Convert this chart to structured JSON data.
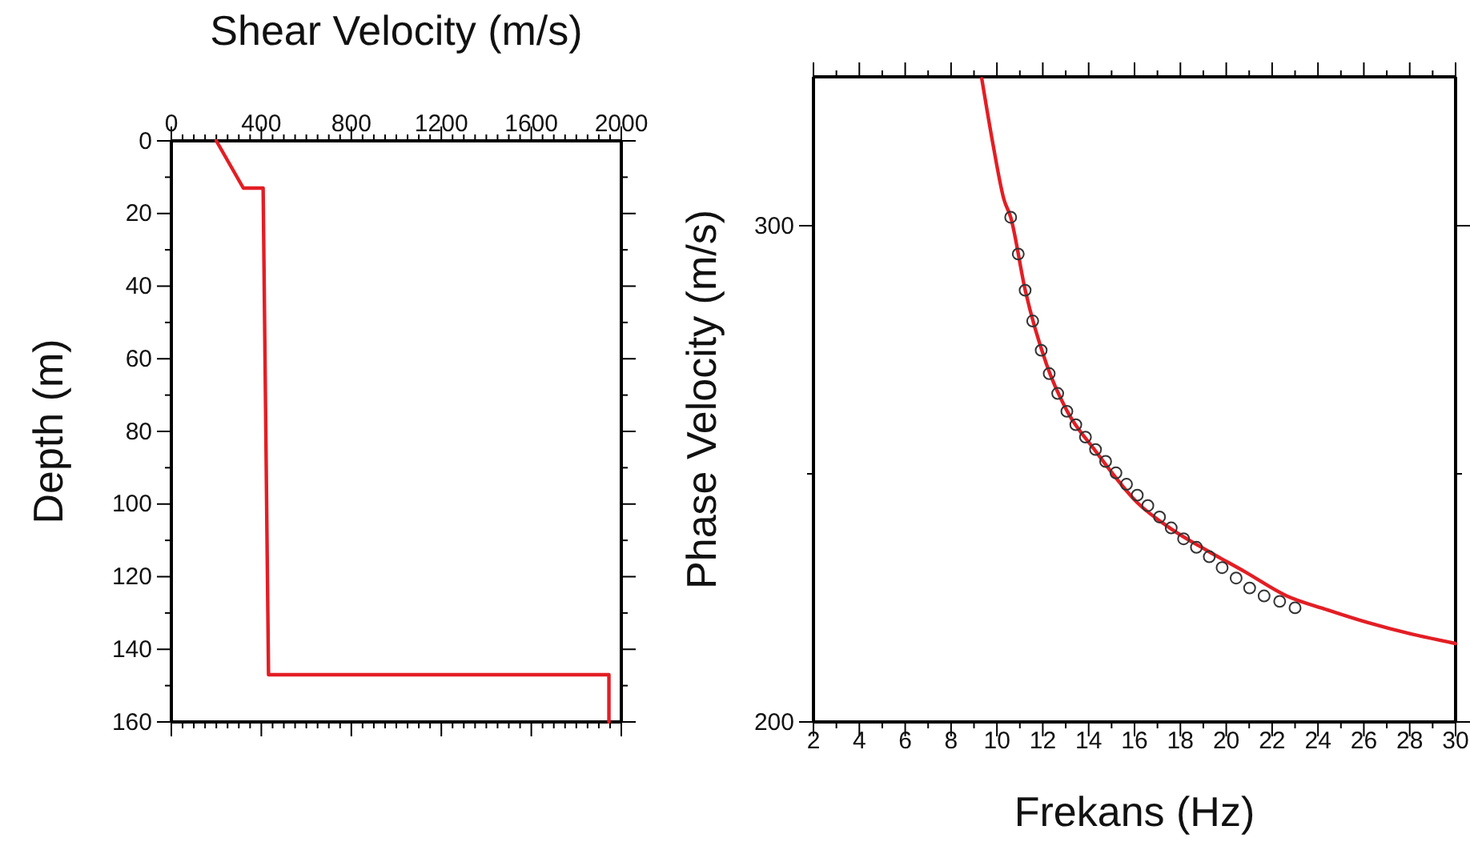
{
  "chart_data": [
    {
      "type": "line",
      "xlabel": "Shear Velocity (m/s)",
      "ylabel": "Depth (m)",
      "xlim": [
        0,
        2000
      ],
      "ylim": [
        160,
        0
      ],
      "xticks": [
        0,
        {
          "value": 50,
          "label": null
        },
        {
          "value": 100,
          "label": null
        },
        {
          "value": 150,
          "label": null
        },
        {
          "value": 200,
          "label": null
        },
        {
          "value": 250,
          "label": null
        },
        {
          "value": 300,
          "label": null
        },
        {
          "value": 350,
          "label": null
        },
        400,
        {
          "value": 450,
          "label": null
        },
        {
          "value": 500,
          "label": null
        },
        {
          "value": 550,
          "label": null
        },
        {
          "value": 600,
          "label": null
        },
        {
          "value": 650,
          "label": null
        },
        {
          "value": 700,
          "label": null
        },
        {
          "value": 750,
          "label": null
        },
        800,
        {
          "value": 850,
          "label": null
        },
        {
          "value": 900,
          "label": null
        },
        {
          "value": 950,
          "label": null
        },
        {
          "value": 1000,
          "label": null
        },
        {
          "value": 1050,
          "label": null
        },
        {
          "value": 1100,
          "label": null
        },
        {
          "value": 1150,
          "label": null
        },
        1200,
        {
          "value": 1250,
          "label": null
        },
        {
          "value": 1300,
          "label": null
        },
        {
          "value": 1350,
          "label": null
        },
        {
          "value": 1400,
          "label": null
        },
        {
          "value": 1450,
          "label": null
        },
        {
          "value": 1500,
          "label": null
        },
        {
          "value": 1550,
          "label": null
        },
        1600,
        {
          "value": 1650,
          "label": null
        },
        {
          "value": 1700,
          "label": null
        },
        {
          "value": 1750,
          "label": null
        },
        {
          "value": 1800,
          "label": null
        },
        {
          "value": 1850,
          "label": null
        },
        {
          "value": 1900,
          "label": null
        },
        {
          "value": 1950,
          "label": null
        },
        2000
      ],
      "yticks": [
        0,
        {
          "value": 10,
          "label": null
        },
        20,
        {
          "value": 30,
          "label": null
        },
        40,
        {
          "value": 50,
          "label": null
        },
        60,
        {
          "value": 70,
          "label": null
        },
        80,
        {
          "value": 90,
          "label": null
        },
        100,
        {
          "value": 110,
          "label": null
        },
        120,
        {
          "value": 130,
          "label": null
        },
        140,
        {
          "value": 150,
          "label": null
        },
        160
      ],
      "marker": "none",
      "line_style": "solid",
      "series": [
        {
          "color": "#e31e24",
          "x": [
            200,
            320,
            408,
            432,
            1945,
            1945
          ],
          "values": [
            0,
            13,
            13,
            147,
            147,
            160
          ]
        }
      ]
    },
    {
      "type": "line",
      "xlabel": "Frekans (Hz)",
      "ylabel": "Phase Velocity (m/s)",
      "xlim": [
        2,
        30
      ],
      "ylim": [
        200,
        330
      ],
      "xticks": [
        2,
        {
          "value": 3,
          "label": null
        },
        4,
        {
          "value": 5,
          "label": null
        },
        6,
        {
          "value": 7,
          "label": null
        },
        8,
        {
          "value": 9,
          "label": null
        },
        10,
        {
          "value": 11,
          "label": null
        },
        12,
        {
          "value": 13,
          "label": null
        },
        14,
        {
          "value": 15,
          "label": null
        },
        16,
        {
          "value": 17,
          "label": null
        },
        18,
        {
          "value": 19,
          "label": null
        },
        20,
        {
          "value": 21,
          "label": null
        },
        22,
        {
          "value": 23,
          "label": null
        },
        24,
        {
          "value": 25,
          "label": null
        },
        26,
        {
          "value": 27,
          "label": null
        },
        28,
        {
          "value": 29,
          "label": null
        },
        30
      ],
      "yticks": [
        200,
        {
          "value": 250,
          "label": null
        },
        300
      ],
      "series": [
        {
          "color": "#e31e24",
          "marker": "none",
          "line_style": "solid",
          "x": [
            9.34,
            9.84,
            10.3,
            10.6,
            11.23,
            12.16,
            13.09,
            14.25,
            16.12,
            17.6,
            19.14,
            20.8,
            22.63,
            24.4,
            26.12,
            28.0,
            30
          ],
          "values": [
            329.6,
            316.1,
            305.4,
            301.7,
            287.1,
            272.1,
            262.4,
            254.9,
            244.2,
            238.9,
            234.6,
            230.3,
            225.4,
            222.6,
            220.1,
            217.8,
            215.8
          ]
        },
        {
          "type": "scatter",
          "color": "#333333",
          "marker": "circle",
          "x": [
            10.6,
            10.93,
            11.23,
            11.56,
            11.93,
            12.28,
            12.65,
            13.05,
            13.44,
            13.86,
            14.3,
            14.74,
            15.19,
            15.65,
            16.12,
            16.58,
            17.09,
            17.6,
            18.14,
            18.7,
            19.26,
            19.82,
            20.43,
            21.02,
            21.65,
            22.33,
            23.0
          ],
          "values": [
            301.7,
            294.3,
            287.0,
            280.8,
            274.9,
            270.2,
            266.2,
            262.6,
            259.9,
            257.4,
            254.9,
            252.5,
            250.2,
            247.9,
            245.7,
            243.6,
            241.3,
            239.1,
            236.9,
            235.2,
            233.3,
            231.1,
            229.0,
            227.0,
            225.4,
            224.3,
            223.0
          ]
        }
      ]
    }
  ]
}
